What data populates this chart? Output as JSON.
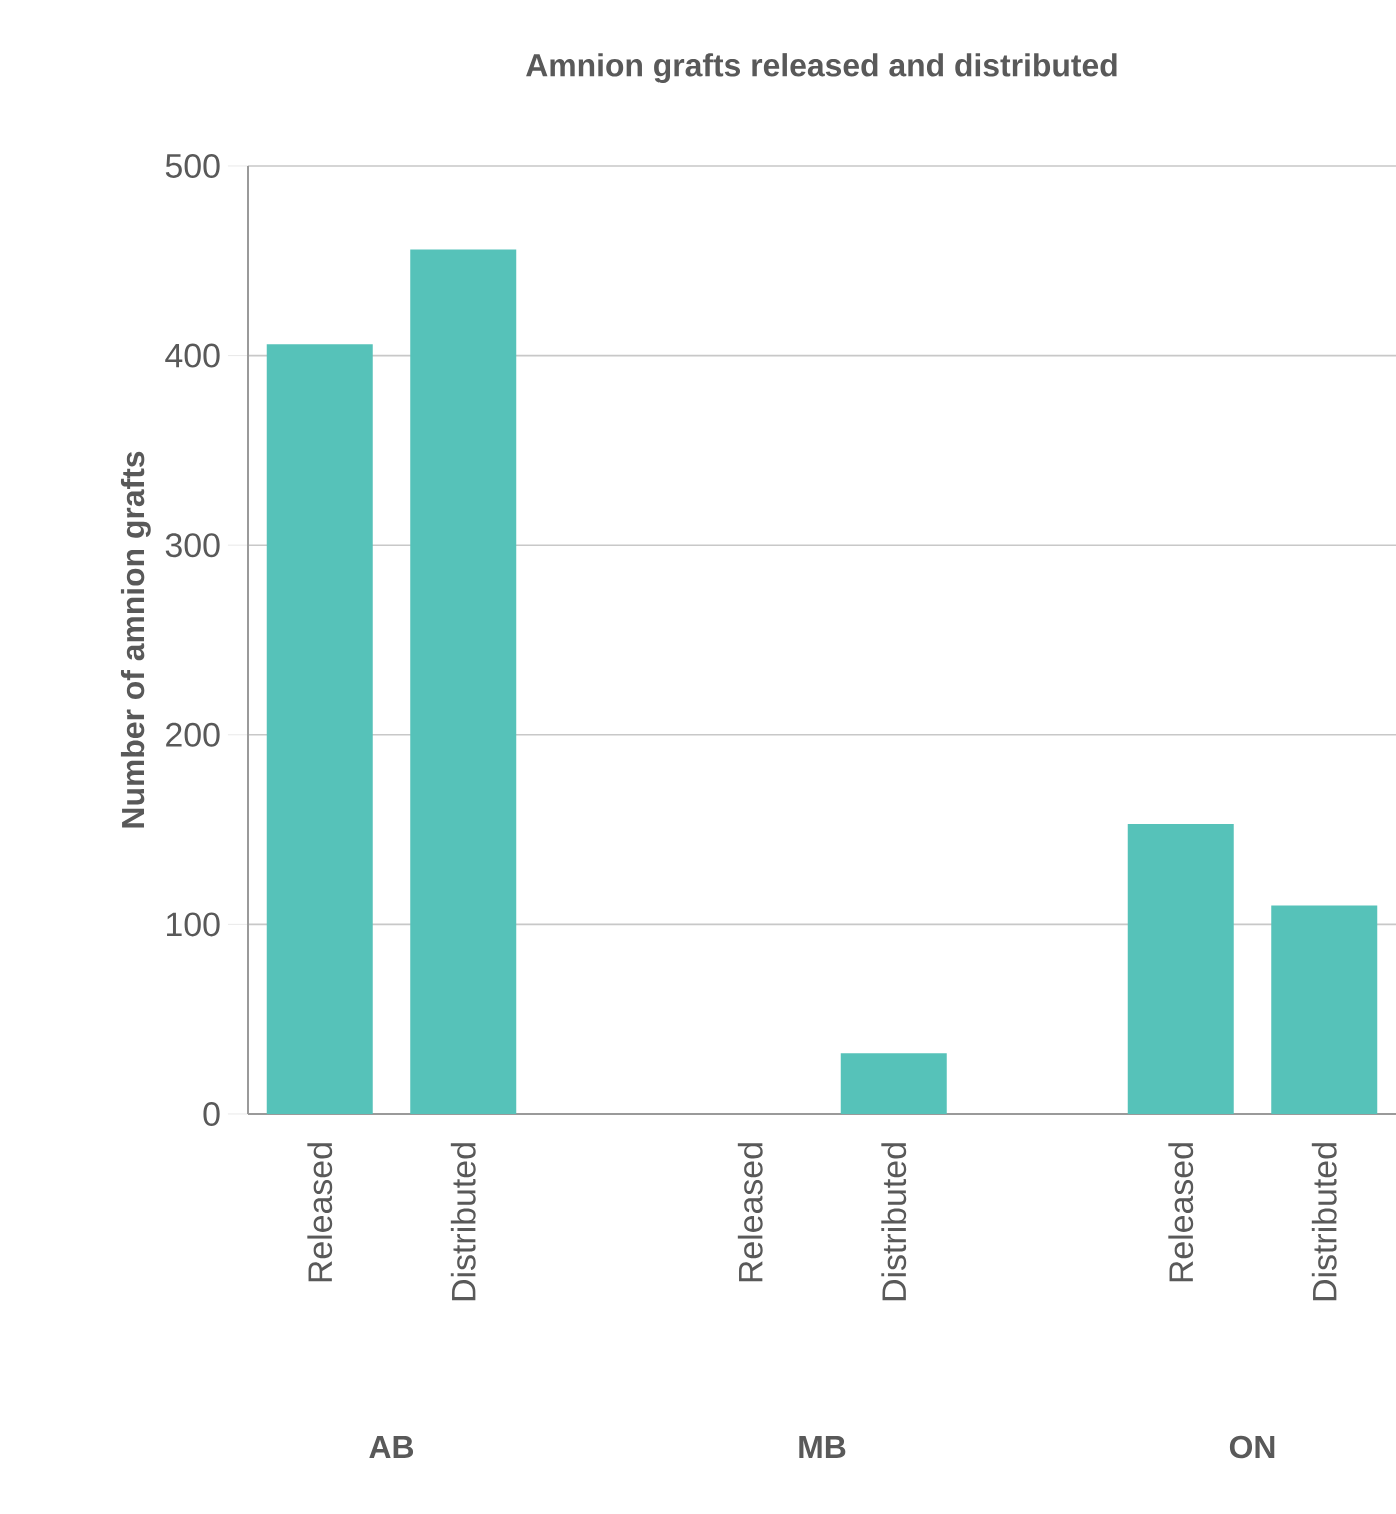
{
  "chart_data": {
    "type": "bar",
    "title": "Amnion grafts released and distributed",
    "ylabel": "Number of amnion grafts",
    "categories": [
      "Released",
      "Distributed",
      null,
      "Released",
      "Distributed",
      null,
      "Released",
      "Distributed"
    ],
    "values": [
      406,
      456,
      null,
      0,
      32,
      null,
      153,
      110
    ],
    "color": "#56c2b9",
    "ylim": [
      0,
      500
    ],
    "yticks": [
      0,
      100,
      200,
      300,
      400,
      500
    ],
    "grid": "y",
    "annotations": [
      "AB",
      "MB",
      "ON"
    ]
  }
}
